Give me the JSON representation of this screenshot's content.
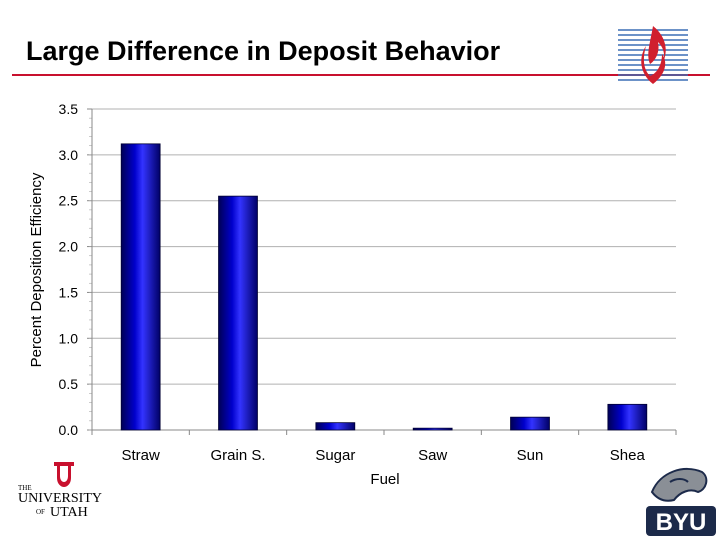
{
  "slide": {
    "title": "Large Difference in Deposit Behavior",
    "title_rule_color": "#c8102e"
  },
  "logos": {
    "top_right": "flame-logo",
    "bottom_left": {
      "the": "THE",
      "university": "UNIVERSITY",
      "of": "OF",
      "utah": "UTAH"
    },
    "bottom_right": {
      "byu": "BYU"
    }
  },
  "chart_data": {
    "type": "bar",
    "title": "",
    "xlabel": "Fuel",
    "ylabel": "Percent Deposition Efficiency",
    "categories": [
      "Straw",
      "Grain S.",
      "Sugar",
      "Saw",
      "Sun",
      "Shea"
    ],
    "values": [
      3.12,
      2.55,
      0.08,
      0.02,
      0.14,
      0.28
    ],
    "ylim": [
      0,
      3.5
    ],
    "yticks": [
      "0.0",
      "0.5",
      "1.0",
      "1.5",
      "2.0",
      "2.5",
      "3.0",
      "3.5"
    ],
    "grid": true,
    "bar_color": "#0000cc"
  }
}
